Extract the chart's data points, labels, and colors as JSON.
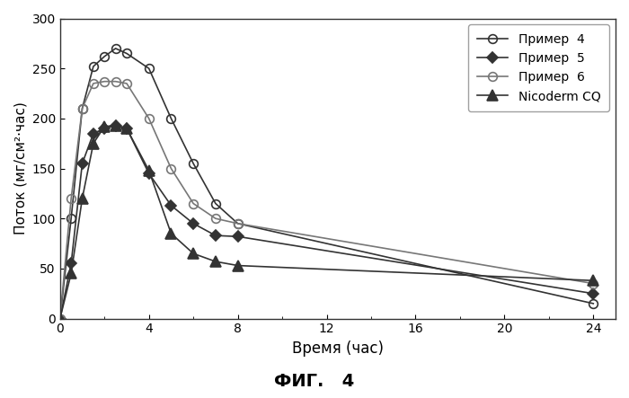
{
  "title": "ФИГ.  4",
  "xlabel": "Время (час)",
  "ylabel": "Поток (мг/см²·час)",
  "ylim": [
    0,
    300
  ],
  "xlim": [
    0,
    25
  ],
  "xticks": [
    0,
    4,
    8,
    12,
    16,
    20,
    24
  ],
  "yticks": [
    0,
    50,
    100,
    150,
    200,
    250,
    300
  ],
  "series": [
    {
      "label": "Пример  4",
      "x": [
        0,
        0.5,
        1,
        1.5,
        2,
        2.5,
        3,
        4,
        5,
        6,
        7,
        8,
        24
      ],
      "y": [
        0,
        100,
        210,
        252,
        262,
        270,
        265,
        250,
        200,
        155,
        115,
        95,
        15
      ],
      "marker": "o",
      "fillstyle": "none",
      "color": "#333333",
      "linestyle": "-"
    },
    {
      "label": "Пример  5",
      "x": [
        0,
        0.5,
        1,
        1.5,
        2,
        2.5,
        3,
        4,
        5,
        6,
        7,
        8,
        24
      ],
      "y": [
        0,
        55,
        155,
        185,
        190,
        193,
        190,
        145,
        113,
        95,
        83,
        82,
        25
      ],
      "marker": "D",
      "fillstyle": "full",
      "color": "#333333",
      "linestyle": "-"
    },
    {
      "label": "Пример  6",
      "x": [
        0,
        0.5,
        1,
        1.5,
        2,
        2.5,
        3,
        4,
        5,
        6,
        7,
        8,
        24
      ],
      "y": [
        0,
        120,
        210,
        235,
        237,
        237,
        235,
        200,
        150,
        115,
        100,
        95,
        35
      ],
      "marker": "o",
      "fillstyle": "none",
      "color": "#777777",
      "linestyle": "-"
    },
    {
      "label": "Nicoderm CQ",
      "x": [
        0,
        0.5,
        1,
        1.5,
        2,
        2.5,
        3,
        4,
        5,
        6,
        7,
        8,
        24
      ],
      "y": [
        0,
        45,
        120,
        175,
        192,
        193,
        190,
        148,
        85,
        65,
        57,
        53,
        38
      ],
      "marker": "^",
      "fillstyle": "full",
      "color": "#333333",
      "linestyle": "-"
    }
  ],
  "legend_loc": "upper right",
  "background_color": "#ffffff",
  "fig_label": "ФИГ.   4"
}
